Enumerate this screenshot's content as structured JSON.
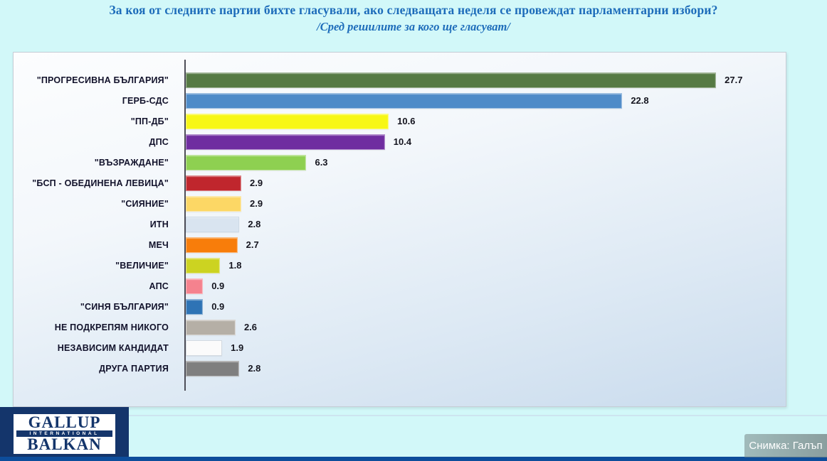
{
  "title": "За коя от следните партии бихте  гласували,  ако следващата неделя се провеждат парламентарни избори?",
  "subtitle": "/Сред решилите за кого ще гласуват/",
  "photo_credit": "Снимка: Галъп",
  "logo": {
    "line1": "GALLUP",
    "line2": "INTERNATIONAL",
    "line3": "BALKAN"
  },
  "colors": {
    "page_background": "#d2f8f9",
    "title_blue": "#1d6cba",
    "axis": "#4e4e58",
    "logo_navy": "#14356b",
    "bottom_strip_blue": "#0d4d9b"
  },
  "chart_data": {
    "type": "bar",
    "orientation": "horizontal",
    "title": "За коя от следните партии бихте гласували, ако следващата неделя се провеждат парламентарни избори?",
    "subtitle": "/Сред решилите за кого ще гласуват/",
    "xlabel": "",
    "ylabel": "",
    "xlim": [
      0,
      30
    ],
    "grid": false,
    "legend": false,
    "categories": [
      "\"ПРОГРЕСИВНА БЪЛГАРИЯ\"",
      "ГЕРБ-СДС",
      "\"ПП-ДБ\"",
      "ДПС",
      "\"ВЪЗРАЖДАНЕ\"",
      "\"БСП - ОБЕДИНЕНА ЛЕВИЦА\"",
      "\"СИЯНИЕ\"",
      "ИТН",
      "МЕЧ",
      "\"ВЕЛИЧИЕ\"",
      "АПС",
      "\"СИНЯ БЪЛГАРИЯ\"",
      "НЕ ПОДКРЕПЯМ НИКОГО",
      "НЕЗАВИСИМ КАНДИДАТ",
      "ДРУГА ПАРТИЯ"
    ],
    "values": [
      27.7,
      22.8,
      10.6,
      10.4,
      6.3,
      2.9,
      2.9,
      2.8,
      2.7,
      1.8,
      0.9,
      0.9,
      2.6,
      1.9,
      2.8
    ],
    "bar_colors": [
      "#567a44",
      "#4e8bc8",
      "#f7f716",
      "#6f2da0",
      "#8ed051",
      "#c0262d",
      "#fcd765",
      "#d9e4f0",
      "#f87d0a",
      "#ccd321",
      "#f5828e",
      "#2e73b5",
      "#b5afa6",
      "#fbfbfb",
      "#7f7f7f"
    ],
    "bar_border_colors": [
      "rgba(255,255,255,0.45)",
      "rgba(255,255,255,0.45)",
      "rgba(255,255,255,0.45)",
      "rgba(255,255,255,0.45)",
      "rgba(255,255,255,0.45)",
      "rgba(255,255,255,0.45)",
      "rgba(255,255,255,0.45)",
      "#cdd9e6",
      "rgba(255,255,255,0.45)",
      "rgba(255,255,255,0.45)",
      "rgba(255,255,255,0.45)",
      "rgba(255,255,255,0.45)",
      "rgba(255,255,255,0.5)",
      "#d4dae1",
      "rgba(255,255,255,0.45)"
    ]
  }
}
